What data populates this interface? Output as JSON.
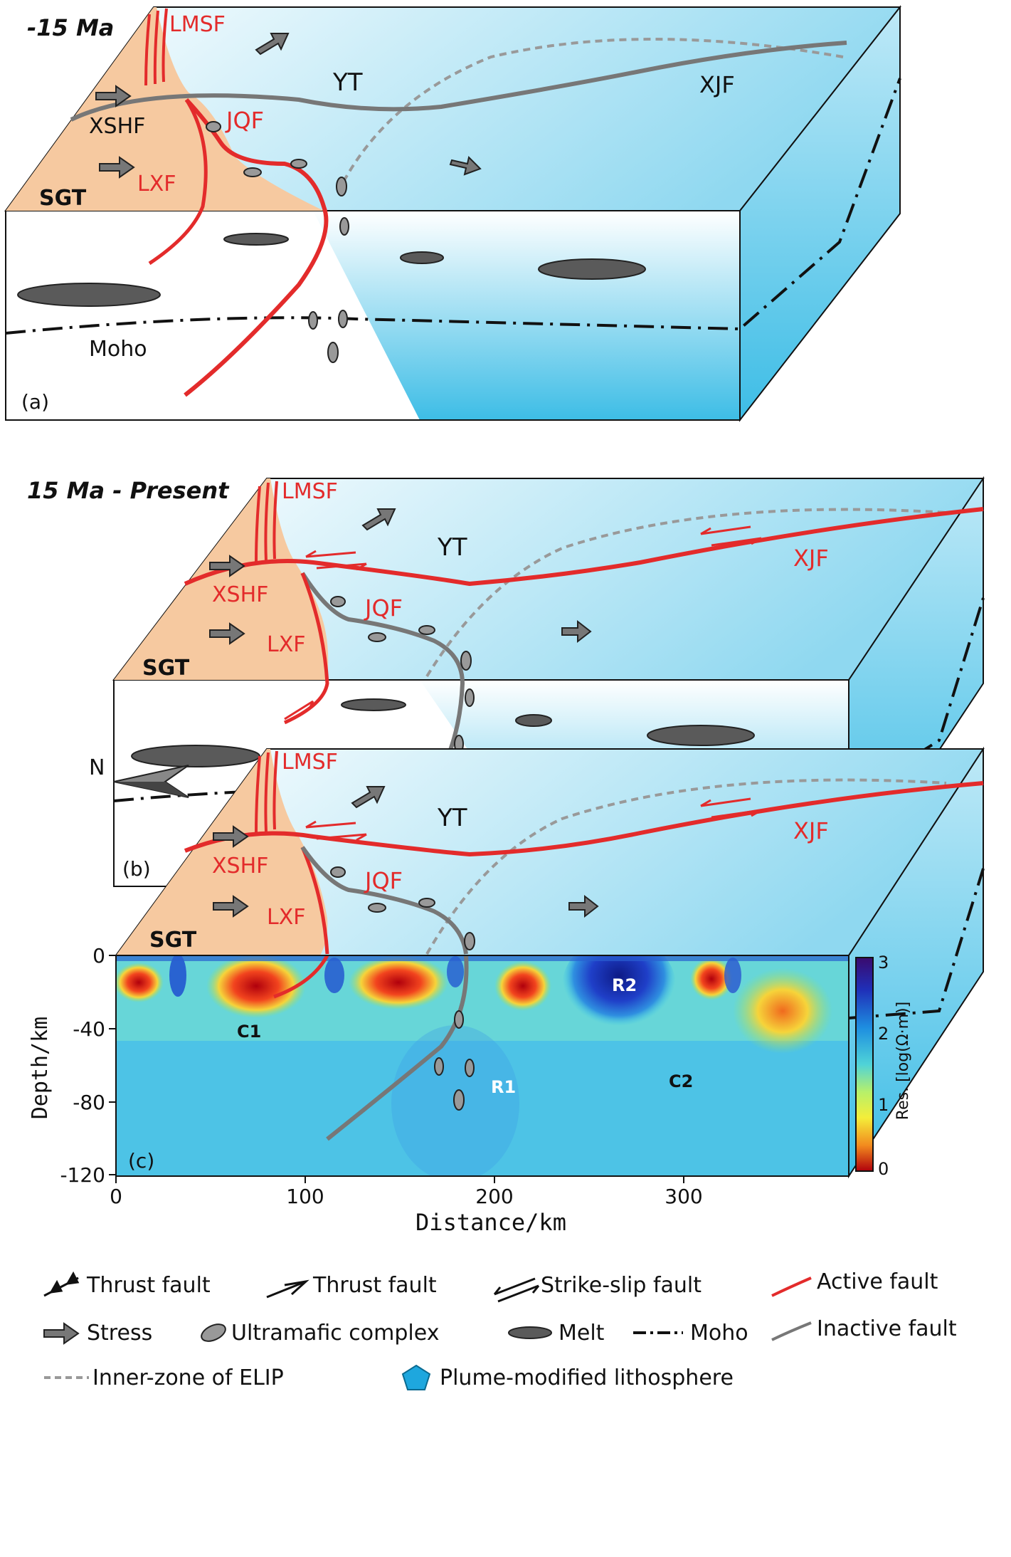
{
  "panels": [
    {
      "period": "-15 Ma",
      "tag": "(a)",
      "labels": {
        "lmsf": "LMSF",
        "yt": "YT",
        "xjf": "XJF",
        "xshf": "XSHF",
        "jqf": "JQF",
        "lxf": "LXF",
        "sgt": "SGT",
        "moho": "Moho"
      }
    },
    {
      "period": "15 Ma - Present",
      "tag": "(b)",
      "labels": {
        "lmsf": "LMSF",
        "yt": "YT",
        "xjf": "XJF",
        "xshf": "XSHF",
        "jqf": "JQF",
        "lxf": "LXF",
        "sgt": "SGT"
      }
    },
    {
      "tag": "(c)",
      "north": "N",
      "labels": {
        "lmsf": "LMSF",
        "yt": "YT",
        "xjf": "XJF",
        "xshf": "XSHF",
        "jqf": "JQF",
        "lxf": "LXF",
        "sgt": "SGT"
      },
      "section": {
        "ylabel": "Depth/km",
        "xlabel": "Distance/km",
        "yticks": [
          "0",
          "-40",
          "-80",
          "-120"
        ],
        "xticks": [
          "0",
          "100",
          "200",
          "300"
        ],
        "anomalies": [
          "C1",
          "R1",
          "R2",
          "C2"
        ],
        "colorbar_label": "Res. [log(Ω·m)]",
        "colorbar_ticks": [
          "3",
          "2",
          "1",
          "0"
        ]
      }
    }
  ],
  "legend": [
    {
      "symbol": "thrust-fault-teeth",
      "label": "Thrust fault"
    },
    {
      "symbol": "thrust-fault-half-arrow",
      "label": "Thrust fault"
    },
    {
      "symbol": "strike-slip-fault",
      "label": "Strike-slip fault"
    },
    {
      "symbol": "active-fault",
      "label": "Active fault",
      "color": "#e32b2b"
    },
    {
      "symbol": "stress-arrow",
      "label": "Stress"
    },
    {
      "symbol": "ultramafic-ellipse",
      "label": "Ultramafic complex"
    },
    {
      "symbol": "melt-lens",
      "label": "Melt"
    },
    {
      "symbol": "moho-dashdot",
      "label": "Moho"
    },
    {
      "symbol": "inactive-fault",
      "label": "Inactive fault",
      "color": "#777777"
    },
    {
      "symbol": "elip-dashed",
      "label": "Inner-zone of ELIP",
      "color": "#999999"
    },
    {
      "symbol": "plume-pentagon",
      "label": "Plume-modified lithosphere",
      "color": "#1ea7de"
    }
  ],
  "colors": {
    "active_fault": "#e32b2b",
    "inactive_fault": "#777777",
    "sgt_block": "#f6c9a0",
    "plume": "#3dbde6",
    "elip": "#999999"
  }
}
